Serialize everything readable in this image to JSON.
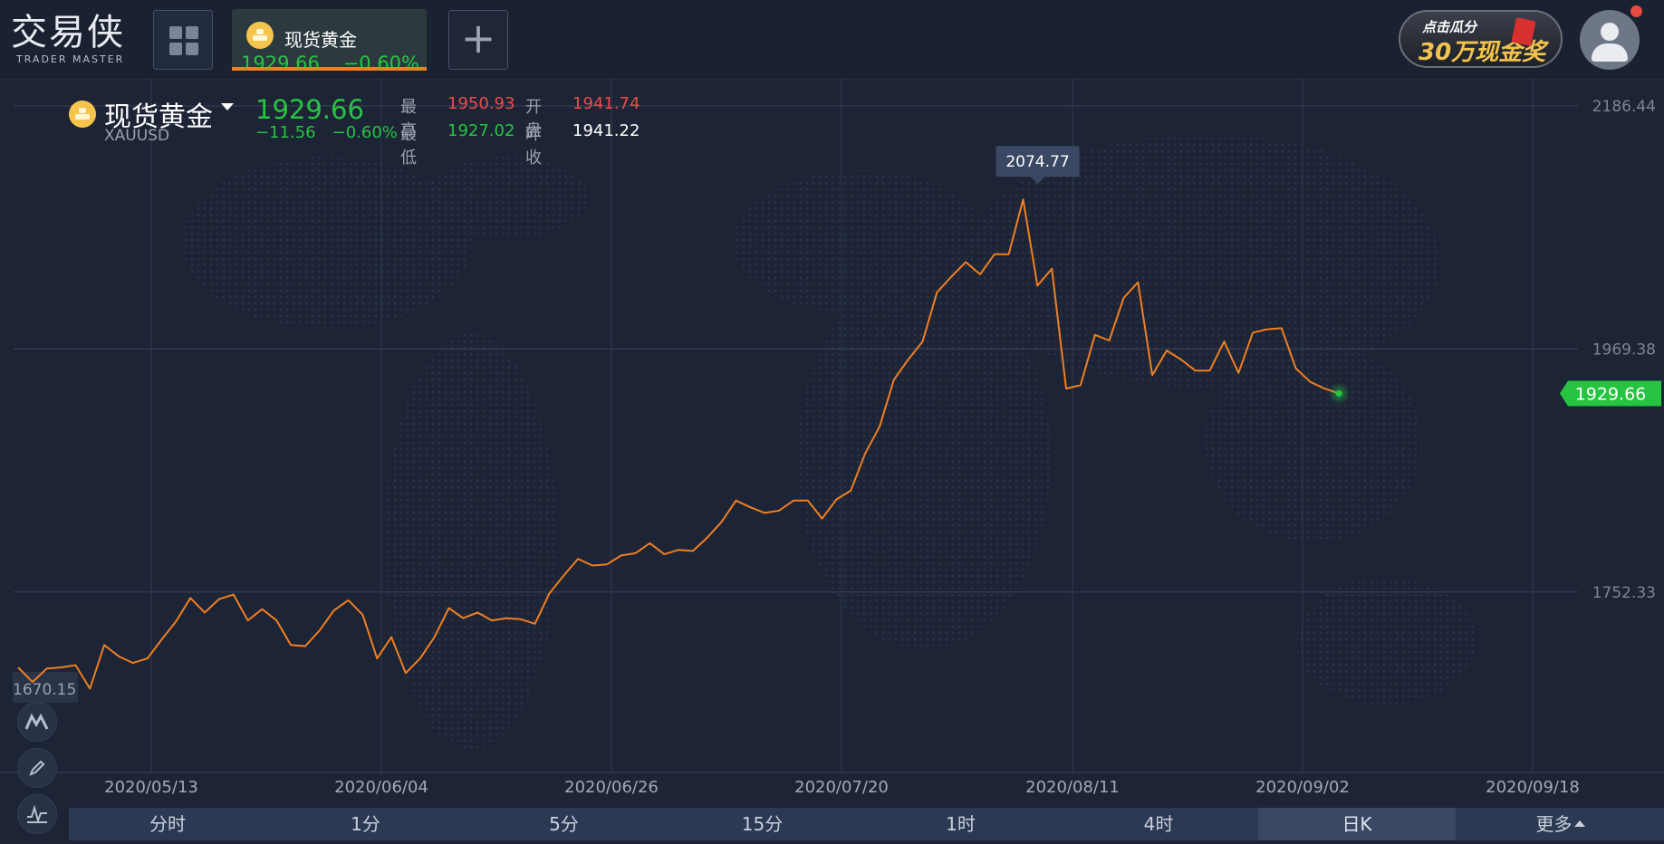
{
  "header": {
    "logo_cn": "交易侠",
    "logo_en": "TRADER MASTER",
    "tab": {
      "name": "现货黄金",
      "price": "1929.66",
      "change_pct": "−0.60%"
    },
    "promo": {
      "line1": "点击瓜分",
      "line2": "30万现金奖"
    }
  },
  "quote": {
    "name": "现货黄金",
    "symbol": "XAUUSD",
    "price": "1929.66",
    "change": "−11.56",
    "change_pct": "−0.60%",
    "high_label": "最高",
    "high": "1950.93",
    "open_label": "开盘",
    "open": "1941.74",
    "low_label": "最低",
    "low": "1927.02",
    "prev_label": "昨收",
    "prev_close": "1941.22"
  },
  "chart_data": {
    "type": "line",
    "series": [
      {
        "values": [
          1685,
          1672,
          1684,
          1685,
          1687,
          1666,
          1705,
          1695,
          1689,
          1693,
          1710,
          1726,
          1747,
          1734,
          1746,
          1750,
          1727,
          1737,
          1727,
          1705,
          1704,
          1718,
          1736,
          1745,
          1732,
          1693,
          1712,
          1680,
          1693,
          1712,
          1738,
          1729,
          1734,
          1727,
          1729,
          1728,
          1724,
          1751,
          1767,
          1782,
          1776,
          1777,
          1785,
          1787,
          1796,
          1786,
          1790,
          1789,
          1801,
          1815,
          1834,
          1828,
          1823,
          1825,
          1834,
          1834,
          1818,
          1835,
          1843,
          1876,
          1900,
          1942,
          1960,
          1976,
          2020,
          2034,
          2047,
          2036,
          2054,
          2054,
          2103,
          2026,
          2041,
          1934,
          1937,
          1982,
          1977,
          2015,
          2029,
          1946,
          1968,
          1960,
          1950,
          1950,
          1976,
          1948,
          1984,
          1987,
          1988,
          1952,
          1940,
          1934,
          1929.66
        ]
      }
    ],
    "x_ticks": [
      "2020/05/13",
      "2020/06/04",
      "2020/06/26",
      "2020/07/20",
      "2020/08/11",
      "2020/09/02",
      "2020/09/18"
    ],
    "y_ticks": [
      "2186.44",
      "1969.38",
      "1752.33",
      "1670.15"
    ],
    "y_tick_values": [
      2186.44,
      1969.38,
      1752.33,
      1670.15
    ],
    "ylim": [
      1592,
      2186.44
    ],
    "peak_label": "2074.77",
    "last_label": "1929.66",
    "colors": {
      "line": "#f07f22",
      "last": "#27c441"
    }
  },
  "tools": [
    "mountain-chart-icon",
    "pencil-icon",
    "indicator-icon"
  ],
  "periods": [
    "分时",
    "1分",
    "5分",
    "15分",
    "1时",
    "4时",
    "日K",
    "更多"
  ],
  "active_period": "日K"
}
